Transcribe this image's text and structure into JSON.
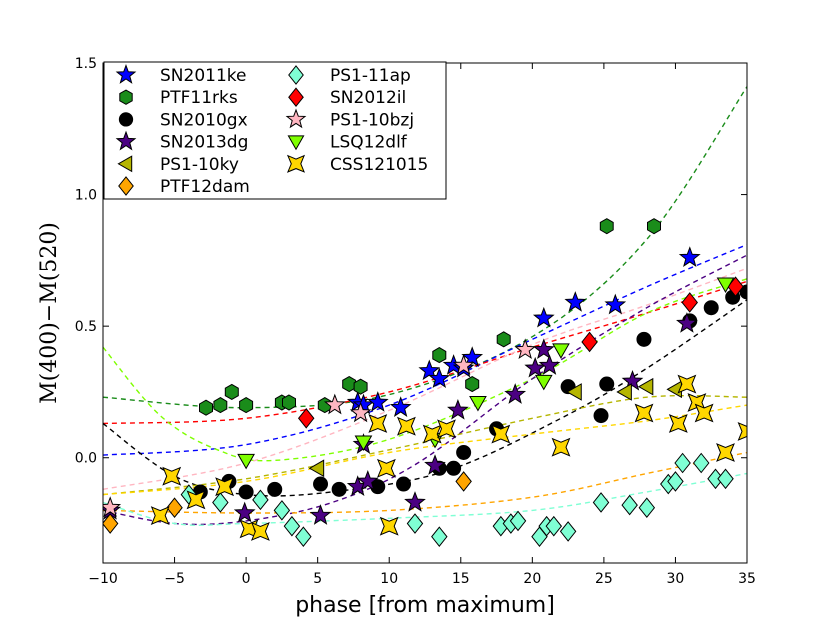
{
  "chart_data": {
    "type": "scatter",
    "title": "",
    "xlabel": "phase [from maximum]",
    "ylabel": "M(400)−M(520)",
    "xlim": [
      -10,
      35
    ],
    "ylim": [
      -0.4,
      1.5
    ],
    "xticks": [
      -10,
      -5,
      0,
      5,
      10,
      15,
      20,
      25,
      30,
      35
    ],
    "xtick_labels": [
      "−10",
      "−5",
      "0",
      "5",
      "10",
      "15",
      "20",
      "25",
      "30",
      "35"
    ],
    "yticks": [
      0.0,
      0.5,
      1.0,
      1.5
    ],
    "ytick_labels": [
      "0.0",
      "0.5",
      "1.0",
      "1.5"
    ],
    "grid": false,
    "legend_position": "top-left",
    "series": [
      {
        "name": "SN2011ke",
        "color": "#0000ff",
        "marker": "star",
        "points": [
          [
            7.8,
            0.21
          ],
          [
            8.2,
            0.2
          ],
          [
            9.2,
            0.21
          ],
          [
            10.8,
            0.19
          ],
          [
            12.8,
            0.33
          ],
          [
            13.5,
            0.3
          ],
          [
            14.5,
            0.35
          ],
          [
            15.2,
            0.34
          ],
          [
            15.8,
            0.38
          ],
          [
            20.8,
            0.53
          ],
          [
            23,
            0.59
          ],
          [
            25.8,
            0.58
          ],
          [
            31,
            0.76
          ]
        ]
      },
      {
        "name": "PTF11rks",
        "color": "#1a8c1a",
        "marker": "hexagon",
        "points": [
          [
            -2.8,
            0.19
          ],
          [
            -1.8,
            0.2
          ],
          [
            -1,
            0.25
          ],
          [
            0,
            0.2
          ],
          [
            2.5,
            0.21
          ],
          [
            3,
            0.21
          ],
          [
            5.5,
            0.2
          ],
          [
            7.2,
            0.28
          ],
          [
            8,
            0.27
          ],
          [
            13.5,
            0.39
          ],
          [
            15.8,
            0.28
          ],
          [
            18,
            0.45
          ],
          [
            25.2,
            0.88
          ],
          [
            28.5,
            0.88
          ]
        ]
      },
      {
        "name": "SN2010gx",
        "color": "#000000",
        "marker": "circle",
        "points": [
          [
            -3.2,
            -0.13
          ],
          [
            -1.2,
            -0.09
          ],
          [
            0,
            -0.13
          ],
          [
            2,
            -0.12
          ],
          [
            5.2,
            -0.1
          ],
          [
            6.5,
            -0.12
          ],
          [
            9.2,
            -0.11
          ],
          [
            11,
            -0.1
          ],
          [
            13.5,
            -0.04
          ],
          [
            14.5,
            -0.04
          ],
          [
            15.2,
            0.02
          ],
          [
            17.5,
            0.11
          ],
          [
            22.5,
            0.27
          ],
          [
            24.8,
            0.16
          ],
          [
            25.2,
            0.28
          ],
          [
            27.8,
            0.45
          ],
          [
            31,
            0.52
          ],
          [
            32.5,
            0.57
          ],
          [
            34,
            0.61
          ],
          [
            35,
            0.63
          ]
        ]
      },
      {
        "name": "SN2013dg",
        "color": "#4b0082",
        "marker": "star",
        "points": [
          [
            -9.5,
            -0.2
          ],
          [
            -0.1,
            -0.21
          ],
          [
            5.2,
            -0.22
          ],
          [
            7.8,
            -0.11
          ],
          [
            8.2,
            0.05
          ],
          [
            8.5,
            -0.09
          ],
          [
            11.8,
            -0.17
          ],
          [
            13.2,
            -0.03
          ],
          [
            14.8,
            0.18
          ],
          [
            18.8,
            0.24
          ],
          [
            20.2,
            0.34
          ],
          [
            20.8,
            0.41
          ],
          [
            21.2,
            0.35
          ],
          [
            27,
            0.29
          ],
          [
            30.8,
            0.51
          ]
        ]
      },
      {
        "name": "PS1-10ky",
        "color": "#b5b500",
        "marker": "triangle-left",
        "points": [
          [
            5,
            -0.04
          ],
          [
            23,
            0.25
          ],
          [
            26.5,
            0.25
          ],
          [
            28,
            0.27
          ],
          [
            30,
            0.26
          ]
        ]
      },
      {
        "name": "PTF12dam",
        "color": "#ffa500",
        "marker": "diamond",
        "points": [
          [
            -9.5,
            -0.25
          ],
          [
            -5,
            -0.19
          ],
          [
            15.2,
            -0.09
          ]
        ]
      },
      {
        "name": "PS1-11ap",
        "color": "#7fffd4",
        "marker": "diamond",
        "points": [
          [
            -4,
            -0.14
          ],
          [
            -1.8,
            -0.17
          ],
          [
            1,
            -0.16
          ],
          [
            2.5,
            -0.2
          ],
          [
            3.2,
            -0.26
          ],
          [
            4,
            -0.3
          ],
          [
            11.8,
            -0.25
          ],
          [
            13.5,
            -0.3
          ],
          [
            17.8,
            -0.26
          ],
          [
            18.5,
            -0.25
          ],
          [
            19,
            -0.24
          ],
          [
            20.5,
            -0.3
          ],
          [
            21,
            -0.26
          ],
          [
            21.5,
            -0.26
          ],
          [
            22.5,
            -0.28
          ],
          [
            24.8,
            -0.17
          ],
          [
            26.8,
            -0.18
          ],
          [
            28,
            -0.19
          ],
          [
            29.5,
            -0.1
          ],
          [
            30,
            -0.09
          ],
          [
            30.5,
            -0.02
          ],
          [
            31.8,
            -0.02
          ],
          [
            32.8,
            -0.08
          ],
          [
            33.5,
            -0.08
          ]
        ]
      },
      {
        "name": "SN2012il",
        "color": "#ff0000",
        "marker": "diamond",
        "points": [
          [
            4.2,
            0.15
          ],
          [
            24,
            0.44
          ],
          [
            31,
            0.59
          ],
          [
            34.2,
            0.65
          ]
        ]
      },
      {
        "name": "PS1-10bzj",
        "color": "#ffb6c1",
        "marker": "star",
        "points": [
          [
            -9.5,
            -0.19
          ],
          [
            6.2,
            0.2
          ],
          [
            8,
            0.17
          ],
          [
            15.2,
            0.35
          ],
          [
            19.5,
            0.41
          ]
        ]
      },
      {
        "name": "LSQ12dlf",
        "color": "#7fff00",
        "marker": "triangle-down",
        "points": [
          [
            0,
            -0.01
          ],
          [
            8.2,
            0.06
          ],
          [
            13.2,
            0.07
          ],
          [
            16.2,
            0.21
          ],
          [
            20.8,
            0.29
          ],
          [
            22,
            0.41
          ],
          [
            33.5,
            0.66
          ]
        ]
      },
      {
        "name": "CSS121015",
        "color": "#ffd700",
        "marker": "square-bowtie",
        "points": [
          [
            -5.2,
            -0.07
          ],
          [
            -6,
            -0.22
          ],
          [
            -3.5,
            -0.16
          ],
          [
            -1.5,
            -0.11
          ],
          [
            0.2,
            -0.27
          ],
          [
            1,
            -0.28
          ],
          [
            9.2,
            0.13
          ],
          [
            9.8,
            -0.04
          ],
          [
            11.2,
            0.12
          ],
          [
            13,
            0.09
          ],
          [
            14,
            0.11
          ],
          [
            17.8,
            0.09
          ],
          [
            22,
            0.04
          ],
          [
            27.8,
            0.17
          ],
          [
            30.2,
            0.13
          ],
          [
            30.8,
            0.28
          ],
          [
            31.5,
            0.21
          ],
          [
            32,
            0.17
          ],
          [
            33.5,
            0.02
          ],
          [
            35,
            0.1
          ],
          [
            10,
            -0.26
          ]
        ]
      }
    ],
    "fit_curves": [
      {
        "color": "#1a8c1a",
        "points": [
          [
            -10,
            0.23
          ],
          [
            0,
            0.19
          ],
          [
            10,
            0.24
          ],
          [
            20,
            0.46
          ],
          [
            28,
            0.83
          ],
          [
            35,
            1.41
          ]
        ]
      },
      {
        "color": "#0000ff",
        "points": [
          [
            -10,
            0.01
          ],
          [
            0,
            0.05
          ],
          [
            10,
            0.2
          ],
          [
            20,
            0.45
          ],
          [
            28,
            0.65
          ],
          [
            35,
            0.81
          ]
        ]
      },
      {
        "color": "#ff0000",
        "points": [
          [
            -10,
            0.13
          ],
          [
            0,
            0.15
          ],
          [
            10,
            0.25
          ],
          [
            20,
            0.42
          ],
          [
            28,
            0.55
          ],
          [
            35,
            0.67
          ]
        ]
      },
      {
        "color": "#ffb6c1",
        "points": [
          [
            -10,
            -0.12
          ],
          [
            0,
            -0.02
          ],
          [
            10,
            0.18
          ],
          [
            20,
            0.43
          ],
          [
            28,
            0.58
          ],
          [
            35,
            0.72
          ]
        ]
      },
      {
        "color": "#7fff00",
        "points": [
          [
            -10,
            0.42
          ],
          [
            -6,
            0.16
          ],
          [
            -2,
            0.03
          ],
          [
            2,
            -0.01
          ],
          [
            10,
            0.07
          ],
          [
            20,
            0.3
          ],
          [
            28,
            0.55
          ],
          [
            35,
            0.68
          ]
        ]
      },
      {
        "color": "#000000",
        "points": [
          [
            -10,
            0.13
          ],
          [
            -5,
            -0.07
          ],
          [
            0,
            -0.14
          ],
          [
            6,
            -0.13
          ],
          [
            14,
            -0.05
          ],
          [
            22,
            0.15
          ],
          [
            28,
            0.34
          ],
          [
            35,
            0.6
          ]
        ]
      },
      {
        "color": "#4b0082",
        "points": [
          [
            -10,
            -0.2
          ],
          [
            -5,
            -0.25
          ],
          [
            0,
            -0.24
          ],
          [
            6,
            -0.17
          ],
          [
            12,
            -0.02
          ],
          [
            20,
            0.3
          ],
          [
            28,
            0.57
          ],
          [
            35,
            0.77
          ]
        ]
      },
      {
        "color": "#b5b500",
        "points": [
          [
            -10,
            -0.14
          ],
          [
            0,
            -0.08
          ],
          [
            10,
            0.03
          ],
          [
            20,
            0.15
          ],
          [
            28,
            0.23
          ],
          [
            35,
            0.23
          ]
        ]
      },
      {
        "color": "#ffd700",
        "points": [
          [
            -10,
            -0.14
          ],
          [
            0,
            -0.09
          ],
          [
            10,
            0.02
          ],
          [
            20,
            0.09
          ],
          [
            28,
            0.14
          ],
          [
            35,
            0.2
          ]
        ]
      },
      {
        "color": "#ffa500",
        "points": [
          [
            -10,
            -0.2
          ],
          [
            0,
            -0.21
          ],
          [
            10,
            -0.2
          ],
          [
            20,
            -0.15
          ],
          [
            28,
            -0.06
          ],
          [
            35,
            0.02
          ]
        ]
      },
      {
        "color": "#7fffd4",
        "points": [
          [
            -10,
            -0.17
          ],
          [
            -5,
            -0.25
          ],
          [
            0,
            -0.25
          ],
          [
            10,
            -0.23
          ],
          [
            20,
            -0.2
          ],
          [
            28,
            -0.13
          ],
          [
            35,
            -0.06
          ]
        ]
      }
    ]
  }
}
